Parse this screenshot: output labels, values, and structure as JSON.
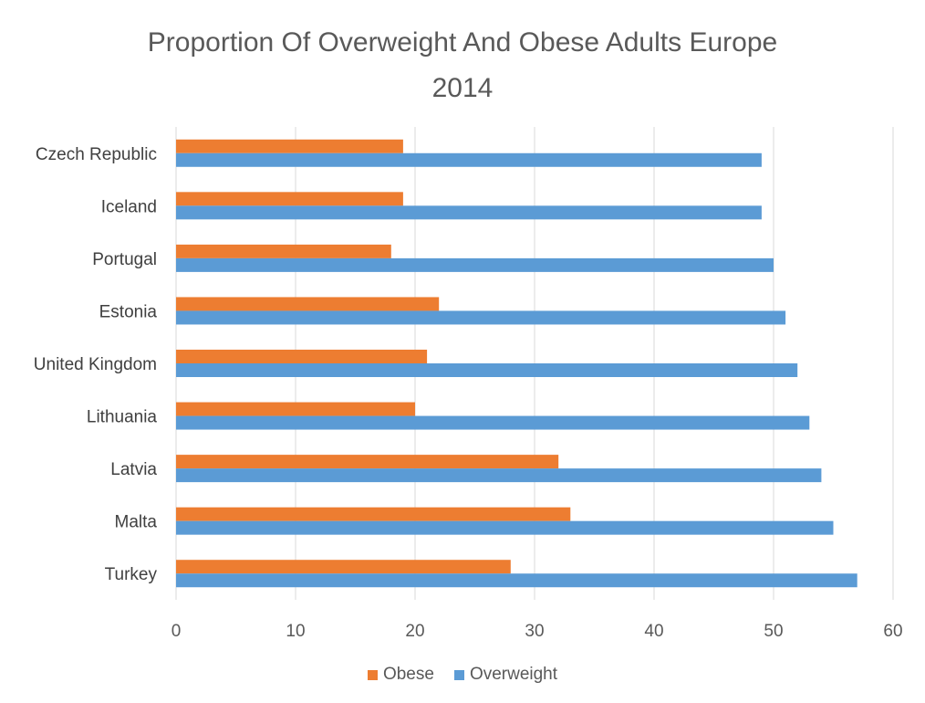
{
  "chart_data": {
    "type": "bar",
    "orientation": "horizontal",
    "title_lines": [
      "Proportion Of Overweight And Obese Adults Europe",
      "2014"
    ],
    "categories": [
      "Czech Republic",
      "Iceland",
      "Portugal",
      "Estonia",
      "United Kingdom",
      "Lithuania",
      "Latvia",
      "Malta",
      "Turkey"
    ],
    "series": [
      {
        "name": "Obese",
        "color": "#ED7D31",
        "values": [
          19,
          19,
          18,
          22,
          21,
          20,
          32,
          33,
          28
        ]
      },
      {
        "name": "Overweight",
        "color": "#5B9BD5",
        "values": [
          49,
          49,
          50,
          51,
          52,
          53,
          54,
          55,
          57
        ]
      }
    ],
    "xlim": [
      0,
      60
    ],
    "xticks": [
      0,
      10,
      20,
      30,
      40,
      50,
      60
    ],
    "grid": "vertical",
    "legend_position": "bottom"
  }
}
